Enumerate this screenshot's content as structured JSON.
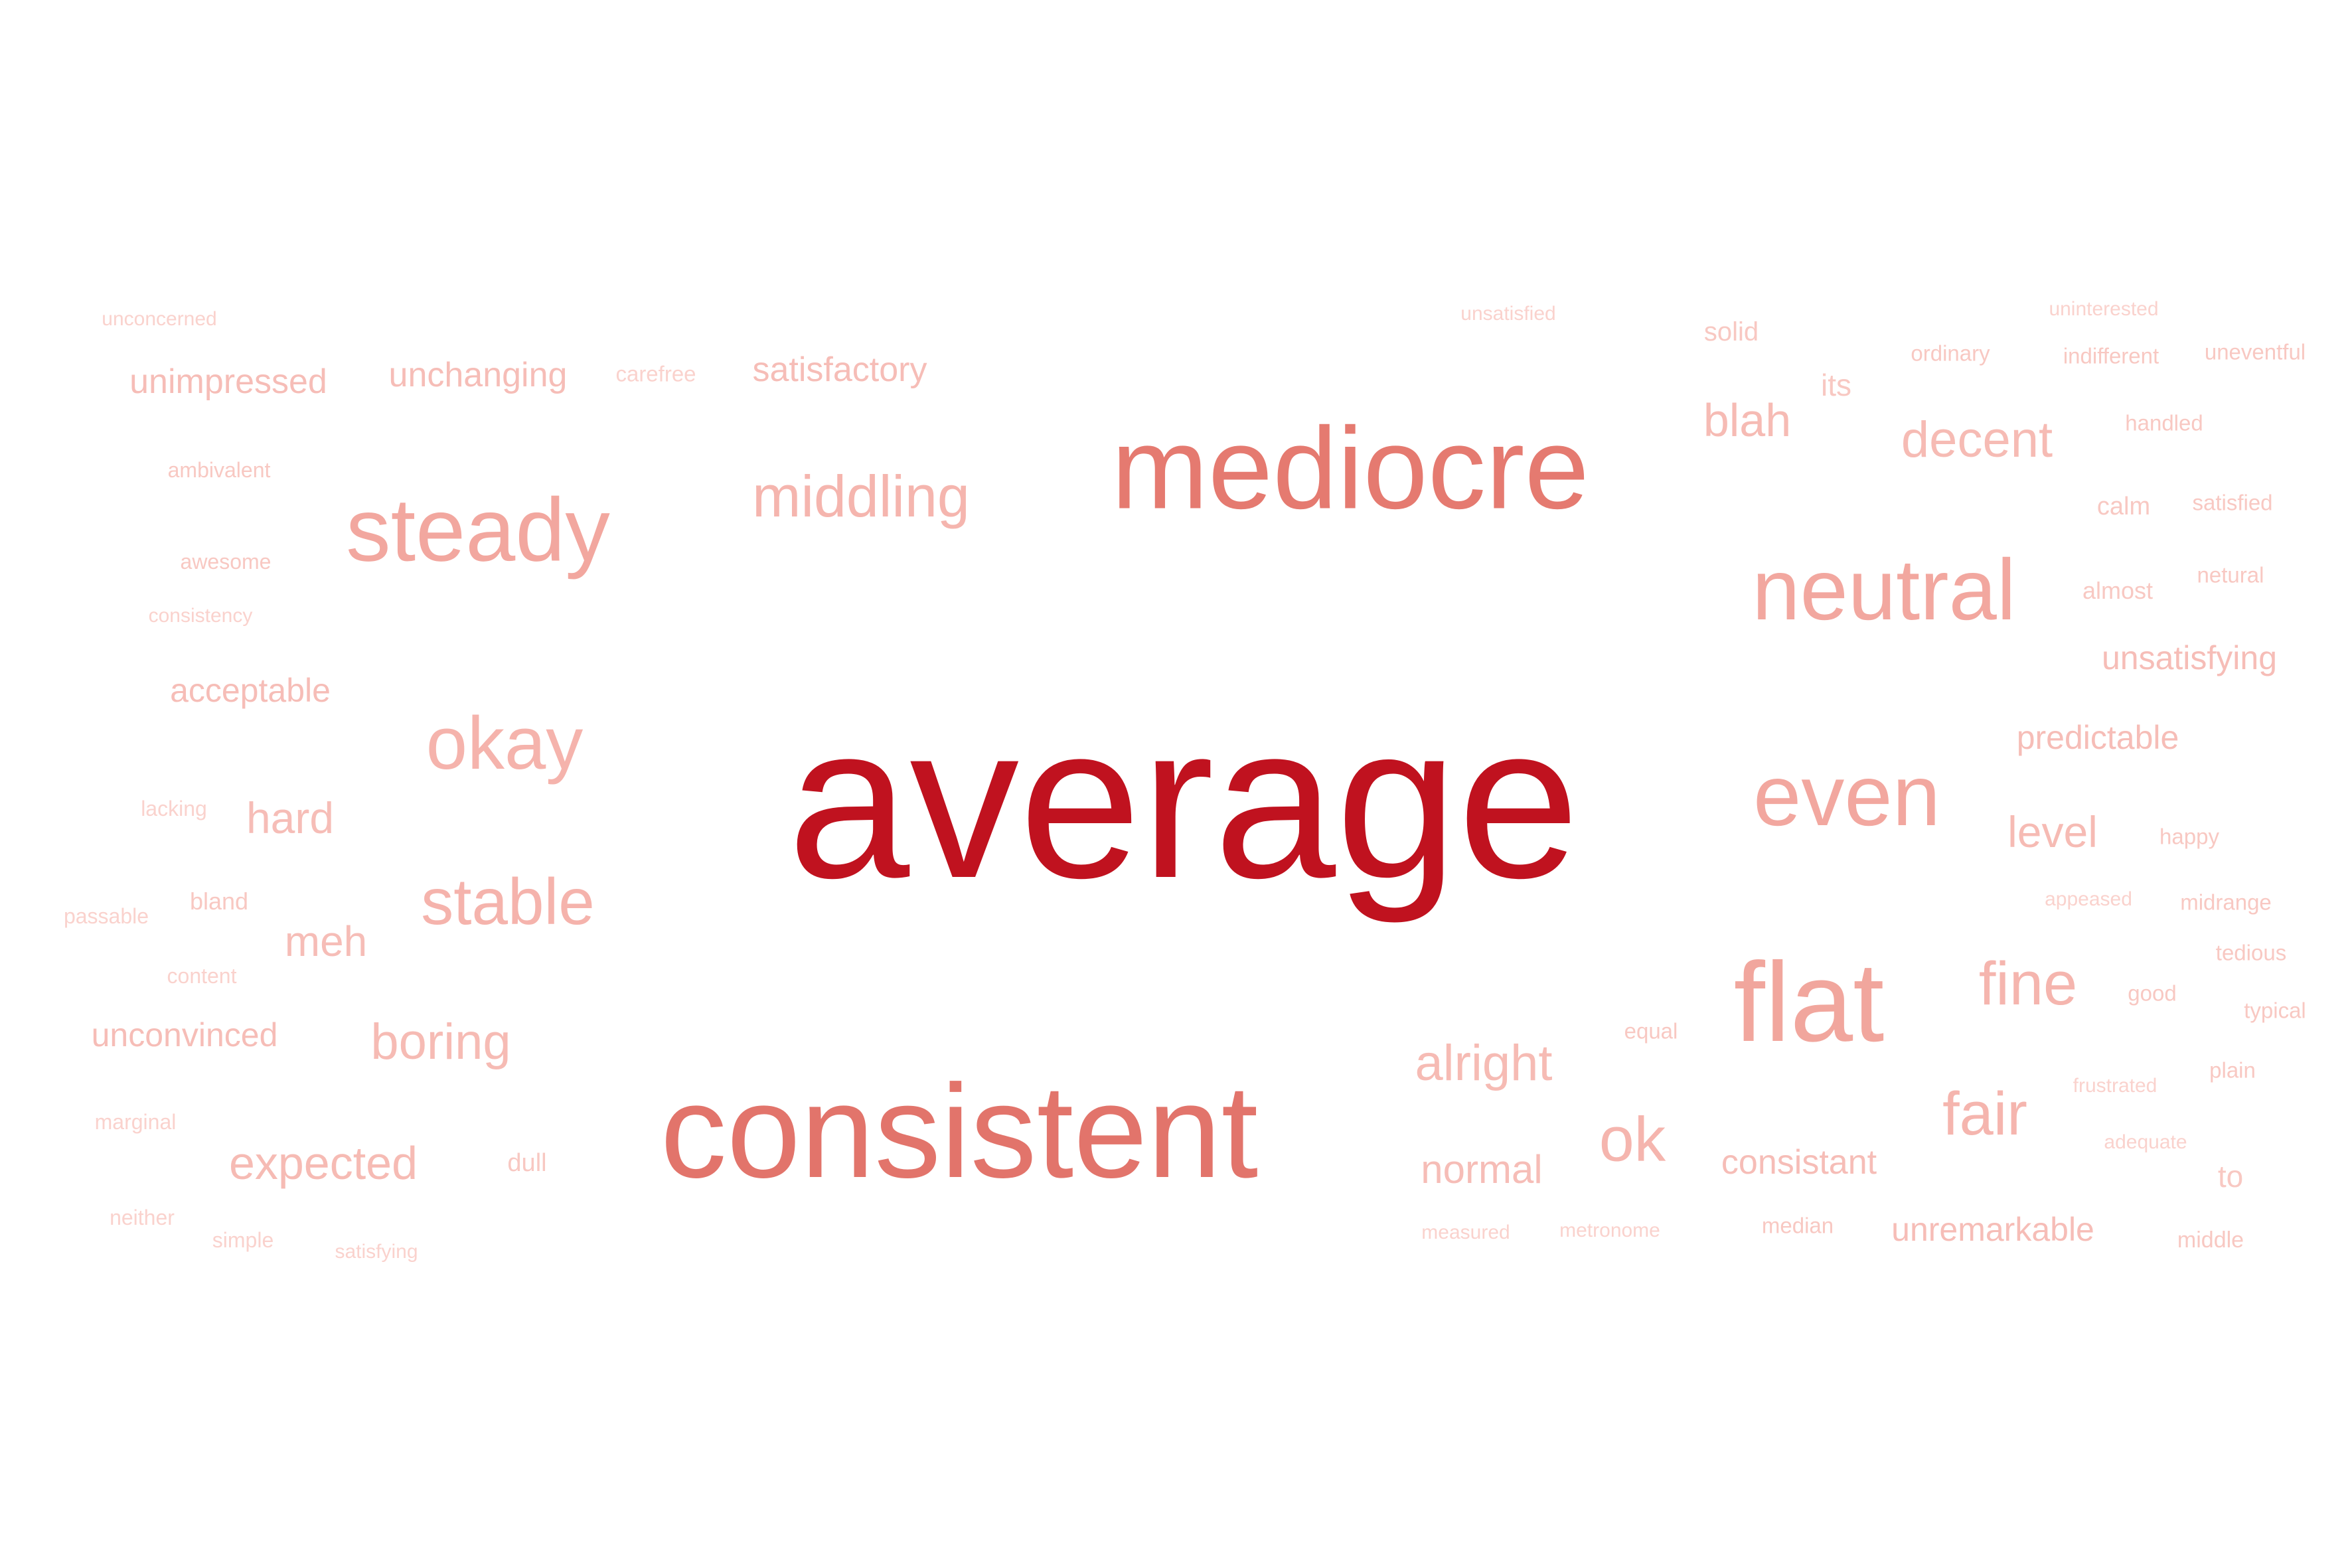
{
  "words": [
    {
      "text": "average",
      "weight": 1.0,
      "color": "#c0121f"
    },
    {
      "text": "consistent",
      "weight": 0.62,
      "color": "#e2746b"
    },
    {
      "text": "mediocre",
      "weight": 0.58,
      "color": "#e57a70"
    },
    {
      "text": "flat",
      "weight": 0.52,
      "color": "#f1a69d"
    },
    {
      "text": "steady",
      "weight": 0.46,
      "color": "#f2a79f"
    },
    {
      "text": "neutral",
      "weight": 0.45,
      "color": "#f2a79f"
    },
    {
      "text": "even",
      "weight": 0.44,
      "color": "#f2a79f"
    },
    {
      "text": "okay",
      "weight": 0.38,
      "color": "#f5b3ac"
    },
    {
      "text": "stable",
      "weight": 0.35,
      "color": "#f5b3ac"
    },
    {
      "text": "middling",
      "weight": 0.31,
      "color": "#f5b5ae"
    },
    {
      "text": "ok",
      "weight": 0.32,
      "color": "#f5b5ae"
    },
    {
      "text": "fine",
      "weight": 0.31,
      "color": "#f5b5ae"
    },
    {
      "text": "fair",
      "weight": 0.31,
      "color": "#f5b5ae"
    },
    {
      "text": "boring",
      "weight": 0.27,
      "color": "#f6bbb4"
    },
    {
      "text": "alright",
      "weight": 0.27,
      "color": "#f6bbb4"
    },
    {
      "text": "decent",
      "weight": 0.27,
      "color": "#f6bbb4"
    },
    {
      "text": "expected",
      "weight": 0.25,
      "color": "#f6bbb4"
    },
    {
      "text": "blah",
      "weight": 0.25,
      "color": "#f6bbb4"
    },
    {
      "text": "level",
      "weight": 0.23,
      "color": "#f6bbb4"
    },
    {
      "text": "hard",
      "weight": 0.23,
      "color": "#f6bdb7"
    },
    {
      "text": "meh",
      "weight": 0.22,
      "color": "#f6bdb7"
    },
    {
      "text": "normal",
      "weight": 0.21,
      "color": "#f6bdb7"
    },
    {
      "text": "unimpressed",
      "weight": 0.19,
      "color": "#f6bdb7"
    },
    {
      "text": "unchanging",
      "weight": 0.19,
      "color": "#f6bdb7"
    },
    {
      "text": "satisfactory",
      "weight": 0.19,
      "color": "#f6bdb7"
    },
    {
      "text": "acceptable",
      "weight": 0.18,
      "color": "#f6bdb7"
    },
    {
      "text": "unconvinced",
      "weight": 0.18,
      "color": "#f6bdb7"
    },
    {
      "text": "unsatisfying",
      "weight": 0.18,
      "color": "#f6bdb7"
    },
    {
      "text": "predictable",
      "weight": 0.18,
      "color": "#f6bdb7"
    },
    {
      "text": "consistant",
      "weight": 0.18,
      "color": "#f6bdb7"
    },
    {
      "text": "unremarkable",
      "weight": 0.18,
      "color": "#f6bdb7"
    },
    {
      "text": "solid",
      "weight": 0.15,
      "color": "#f8c8c2"
    },
    {
      "text": "its",
      "weight": 0.15,
      "color": "#f8c8c2"
    },
    {
      "text": "calm",
      "weight": 0.14,
      "color": "#f8c8c2"
    },
    {
      "text": "almost",
      "weight": 0.13,
      "color": "#f8c8c2"
    },
    {
      "text": "dull",
      "weight": 0.13,
      "color": "#f8c8c2"
    },
    {
      "text": "bland",
      "weight": 0.13,
      "color": "#f8c8c2"
    },
    {
      "text": "awesome",
      "weight": 0.12,
      "color": "#f8c8c2"
    },
    {
      "text": "ambivalent",
      "weight": 0.12,
      "color": "#f8c8c2"
    },
    {
      "text": "ordinary",
      "weight": 0.12,
      "color": "#f8c8c2"
    },
    {
      "text": "indifferent",
      "weight": 0.12,
      "color": "#f8c8c2"
    },
    {
      "text": "uneventful",
      "weight": 0.12,
      "color": "#f8c8c2"
    },
    {
      "text": "handled",
      "weight": 0.12,
      "color": "#f8c8c2"
    },
    {
      "text": "satisfied",
      "weight": 0.12,
      "color": "#f8c8c2"
    },
    {
      "text": "netural",
      "weight": 0.12,
      "color": "#f8c8c2"
    },
    {
      "text": "happy",
      "weight": 0.12,
      "color": "#f8c8c2"
    },
    {
      "text": "midrange",
      "weight": 0.12,
      "color": "#f8c8c2"
    },
    {
      "text": "tedious",
      "weight": 0.12,
      "color": "#f8c8c2"
    },
    {
      "text": "good",
      "weight": 0.12,
      "color": "#f8c8c2"
    },
    {
      "text": "typical",
      "weight": 0.12,
      "color": "#f8c8c2"
    },
    {
      "text": "plain",
      "weight": 0.12,
      "color": "#f8c8c2"
    },
    {
      "text": "to",
      "weight": 0.15,
      "color": "#f8c8c2"
    },
    {
      "text": "middle",
      "weight": 0.12,
      "color": "#f8c8c2"
    },
    {
      "text": "equal",
      "weight": 0.12,
      "color": "#f8c8c2"
    },
    {
      "text": "median",
      "weight": 0.12,
      "color": "#f8c8c2"
    },
    {
      "text": "lacking",
      "weight": 0.11,
      "color": "#fad2cd"
    },
    {
      "text": "consistency",
      "weight": 0.1,
      "color": "#fad2cd"
    },
    {
      "text": "carefree",
      "weight": 0.11,
      "color": "#fad2cd"
    },
    {
      "text": "passable",
      "weight": 0.11,
      "color": "#fad2cd"
    },
    {
      "text": "content",
      "weight": 0.11,
      "color": "#fad2cd"
    },
    {
      "text": "marginal",
      "weight": 0.11,
      "color": "#fad2cd"
    },
    {
      "text": "neither",
      "weight": 0.11,
      "color": "#fad2cd"
    },
    {
      "text": "simple",
      "weight": 0.11,
      "color": "#fad2cd"
    },
    {
      "text": "satisfying",
      "weight": 0.1,
      "color": "#fad2cd"
    },
    {
      "text": "unconcerned",
      "weight": 0.1,
      "color": "#fad2cd"
    },
    {
      "text": "unsatisfied",
      "weight": 0.1,
      "color": "#fad2cd"
    },
    {
      "text": "uninterested",
      "weight": 0.1,
      "color": "#fad2cd"
    },
    {
      "text": "appeased",
      "weight": 0.1,
      "color": "#fad2cd"
    },
    {
      "text": "frustrated",
      "weight": 0.1,
      "color": "#fad2cd"
    },
    {
      "text": "adequate",
      "weight": 0.1,
      "color": "#fad2cd"
    },
    {
      "text": "measured",
      "weight": 0.1,
      "color": "#fad2cd"
    },
    {
      "text": "metronome",
      "weight": 0.1,
      "color": "#fad2cd"
    }
  ]
}
